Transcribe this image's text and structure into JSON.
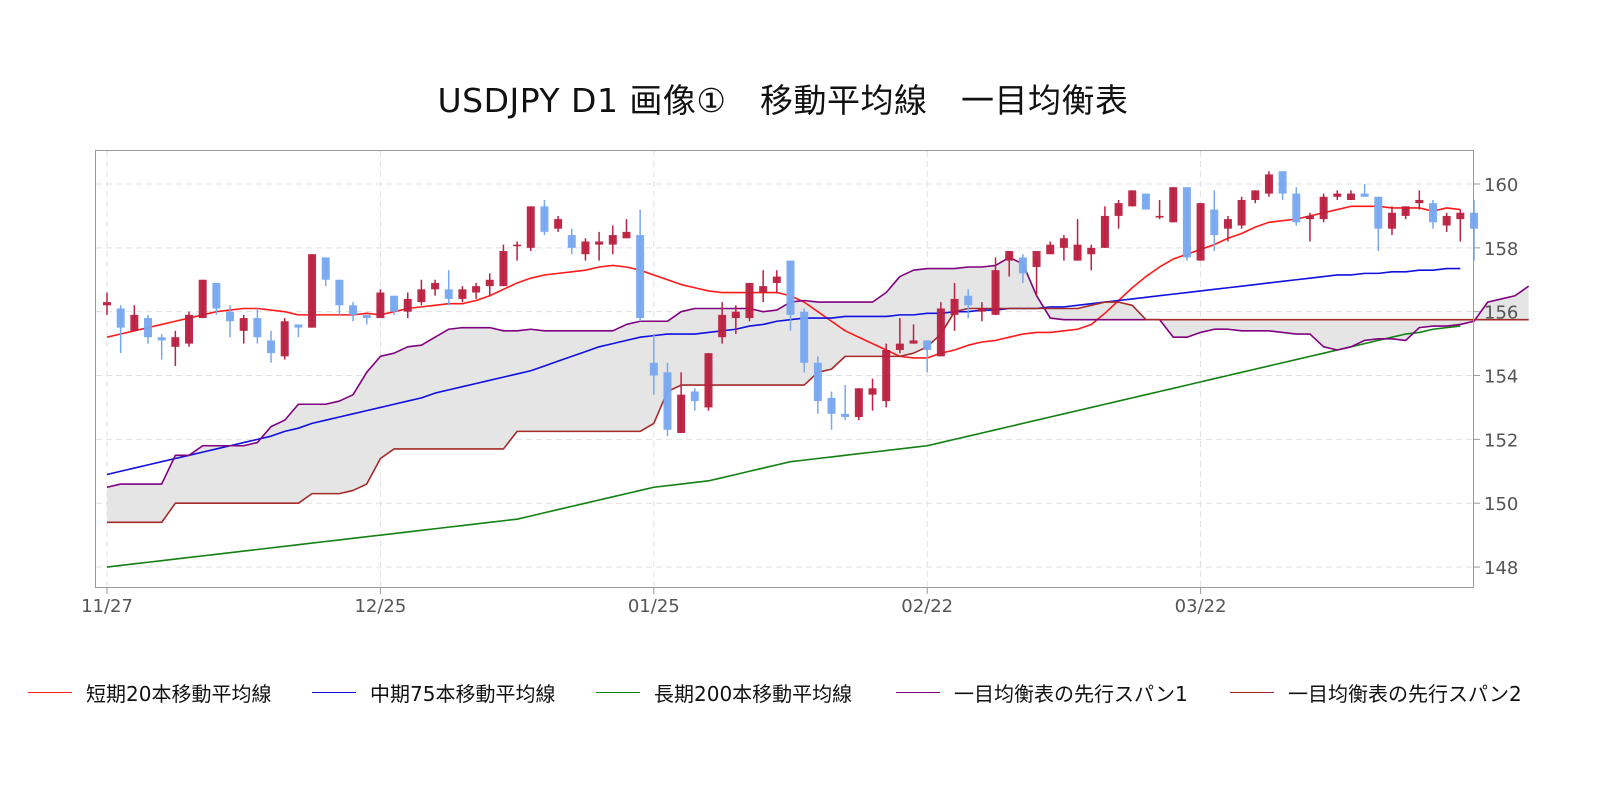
{
  "title": "USDJPY D1 画像①　移動平均線　一目均衡表",
  "colors": {
    "up_candle": "#bb2040",
    "down_candle": "#78a8f0",
    "sma20": "#ff1a1a",
    "sma75": "#1010e0",
    "sma200": "#128012",
    "span1": "#800080",
    "span2": "#a52a2a",
    "cloud_fill": "#e4e4e4",
    "grid": "#e0e0e0",
    "axis": "#999999",
    "tick_text": "#555555"
  },
  "legend": [
    {
      "label": "短期20本移動平均線",
      "color": "#ff1a1a"
    },
    {
      "label": "中期75本移動平均線",
      "color": "#1010e0"
    },
    {
      "label": "長期200本移動平均線",
      "color": "#128012"
    },
    {
      "label": "一目均衡表の先行スパン1",
      "color": "#800080"
    },
    {
      "label": "一目均衡表の先行スパン2",
      "color": "#a52a2a"
    }
  ],
  "chart_data": {
    "type": "candlestick",
    "title": "USDJPY D1 画像①　移動平均線　一目均衡表",
    "xlabel": "",
    "ylabel": "",
    "ylim": [
      147.4,
      161.1
    ],
    "grid": true,
    "legend_position": "bottom",
    "x_ticks": [
      {
        "label": "11/27",
        "index": 0
      },
      {
        "label": "12/25",
        "index": 20
      },
      {
        "label": "01/25",
        "index": 40
      },
      {
        "label": "02/22",
        "index": 60
      },
      {
        "label": "03/22",
        "index": 80
      }
    ],
    "y_ticks": [
      148,
      150,
      152,
      154,
      156,
      158,
      160
    ],
    "candles_ohlc": [
      [
        156.2,
        156.6,
        155.9,
        156.3
      ],
      [
        156.1,
        156.2,
        154.7,
        155.5
      ],
      [
        155.4,
        156.2,
        155.4,
        155.9
      ],
      [
        155.8,
        155.9,
        155.0,
        155.2
      ],
      [
        155.2,
        155.3,
        154.5,
        155.1
      ],
      [
        154.9,
        155.4,
        154.3,
        155.2
      ],
      [
        155.0,
        156.0,
        154.9,
        155.9
      ],
      [
        155.8,
        157.0,
        155.8,
        157.0
      ],
      [
        156.9,
        156.9,
        155.9,
        156.1
      ],
      [
        156.0,
        156.2,
        155.2,
        155.7
      ],
      [
        155.4,
        155.9,
        155.0,
        155.8
      ],
      [
        155.8,
        156.1,
        155.0,
        155.2
      ],
      [
        155.1,
        155.4,
        154.4,
        154.7
      ],
      [
        154.6,
        155.8,
        154.5,
        155.7
      ],
      [
        155.6,
        155.6,
        155.2,
        155.5
      ],
      [
        155.5,
        157.8,
        155.5,
        157.8
      ],
      [
        157.7,
        157.7,
        156.8,
        157.0
      ],
      [
        157.0,
        157.0,
        155.9,
        156.2
      ],
      [
        156.2,
        156.3,
        155.7,
        155.9
      ],
      [
        155.9,
        155.9,
        155.6,
        155.8
      ],
      [
        155.8,
        156.7,
        155.8,
        156.6
      ],
      [
        156.5,
        156.5,
        155.9,
        156.0
      ],
      [
        156.0,
        156.6,
        155.8,
        156.4
      ],
      [
        156.3,
        157.0,
        156.2,
        156.7
      ],
      [
        156.7,
        157.0,
        156.5,
        156.9
      ],
      [
        156.7,
        157.3,
        156.2,
        156.4
      ],
      [
        156.4,
        156.8,
        156.3,
        156.7
      ],
      [
        156.6,
        156.9,
        156.4,
        156.8
      ],
      [
        156.8,
        157.2,
        156.5,
        157.0
      ],
      [
        156.8,
        158.1,
        156.8,
        157.9
      ],
      [
        158.1,
        158.2,
        157.6,
        158.1
      ],
      [
        158.0,
        159.3,
        157.9,
        159.3
      ],
      [
        159.3,
        159.5,
        158.4,
        158.5
      ],
      [
        158.6,
        159.0,
        158.5,
        158.9
      ],
      [
        158.4,
        158.6,
        157.8,
        158.0
      ],
      [
        157.8,
        158.3,
        157.6,
        158.2
      ],
      [
        158.1,
        158.5,
        157.6,
        158.2
      ],
      [
        158.1,
        158.7,
        157.8,
        158.4
      ],
      [
        158.3,
        158.9,
        158.3,
        158.5
      ],
      [
        158.4,
        159.2,
        155.7,
        155.8
      ],
      [
        154.4,
        155.3,
        153.4,
        154.0
      ],
      [
        154.1,
        154.4,
        152.1,
        152.3
      ],
      [
        152.2,
        154.1,
        152.2,
        153.4
      ],
      [
        153.5,
        153.6,
        152.9,
        153.2
      ],
      [
        153.0,
        154.7,
        152.9,
        154.7
      ],
      [
        155.2,
        156.3,
        155.0,
        155.9
      ],
      [
        155.8,
        156.2,
        155.3,
        156.0
      ],
      [
        155.8,
        156.9,
        155.7,
        156.9
      ],
      [
        156.6,
        157.3,
        156.3,
        156.8
      ],
      [
        156.9,
        157.3,
        156.6,
        157.1
      ],
      [
        157.6,
        157.6,
        155.4,
        155.9
      ],
      [
        156.0,
        156.1,
        154.1,
        154.4
      ],
      [
        154.4,
        154.6,
        152.8,
        153.2
      ],
      [
        153.3,
        153.5,
        152.3,
        152.8
      ],
      [
        152.8,
        153.7,
        152.6,
        152.7
      ],
      [
        152.7,
        153.6,
        152.6,
        153.6
      ],
      [
        153.4,
        153.9,
        152.9,
        153.6
      ],
      [
        153.2,
        155.0,
        153.0,
        154.8
      ],
      [
        154.8,
        155.8,
        154.7,
        155.0
      ],
      [
        155.0,
        155.6,
        155.0,
        155.1
      ],
      [
        155.1,
        155.1,
        154.1,
        154.8
      ],
      [
        154.6,
        156.3,
        154.6,
        156.1
      ],
      [
        155.9,
        156.9,
        155.4,
        156.4
      ],
      [
        156.5,
        156.7,
        155.8,
        156.2
      ],
      [
        156.0,
        156.3,
        155.7,
        156.1
      ],
      [
        155.9,
        157.7,
        155.9,
        157.3
      ],
      [
        157.6,
        157.9,
        157.1,
        157.9
      ],
      [
        157.7,
        157.8,
        156.9,
        157.2
      ],
      [
        157.4,
        157.7,
        156.5,
        157.9
      ],
      [
        157.8,
        158.2,
        157.8,
        158.1
      ],
      [
        158.0,
        158.4,
        157.6,
        158.3
      ],
      [
        157.6,
        158.9,
        157.6,
        158.1
      ],
      [
        157.8,
        158.1,
        157.3,
        158.0
      ],
      [
        158.0,
        159.3,
        158.0,
        159.0
      ],
      [
        159.0,
        159.5,
        158.6,
        159.4
      ],
      [
        159.3,
        159.8,
        159.3,
        159.8
      ],
      [
        159.7,
        159.7,
        159.2,
        159.2
      ],
      [
        159.0,
        159.5,
        158.9,
        159.0
      ],
      [
        158.8,
        159.9,
        158.8,
        159.9
      ],
      [
        159.9,
        159.9,
        157.6,
        157.7
      ],
      [
        157.6,
        159.4,
        157.6,
        159.4
      ],
      [
        159.2,
        159.8,
        157.9,
        158.4
      ],
      [
        158.6,
        159.0,
        158.2,
        158.9
      ],
      [
        158.7,
        159.6,
        158.6,
        159.5
      ],
      [
        159.5,
        159.8,
        159.4,
        159.8
      ],
      [
        159.7,
        160.4,
        159.6,
        160.3
      ],
      [
        160.4,
        160.4,
        159.5,
        159.7
      ],
      [
        159.7,
        159.9,
        158.7,
        158.8
      ],
      [
        158.9,
        159.1,
        158.2,
        159.0
      ],
      [
        158.9,
        159.7,
        158.8,
        159.6
      ],
      [
        159.6,
        159.8,
        159.5,
        159.7
      ],
      [
        159.5,
        159.8,
        159.5,
        159.7
      ],
      [
        159.7,
        160.0,
        159.6,
        159.6
      ],
      [
        159.6,
        159.6,
        157.9,
        158.6
      ],
      [
        158.6,
        159.3,
        158.4,
        159.1
      ],
      [
        159.0,
        159.3,
        158.9,
        159.3
      ],
      [
        159.4,
        159.8,
        159.2,
        159.5
      ],
      [
        159.4,
        159.5,
        158.6,
        158.8
      ],
      [
        158.7,
        159.1,
        158.5,
        159.0
      ],
      [
        158.9,
        159.2,
        158.2,
        159.1
      ],
      [
        159.1,
        159.5,
        157.6,
        158.6
      ]
    ],
    "series": [
      {
        "name": "短期20本移動平均線",
        "color": "#ff1a1a",
        "values": [
          155.2,
          155.3,
          155.4,
          155.5,
          155.6,
          155.7,
          155.8,
          155.9,
          156.0,
          156.05,
          156.1,
          156.1,
          156.05,
          156.0,
          155.9,
          155.9,
          155.9,
          155.9,
          155.9,
          155.95,
          155.9,
          156.0,
          156.1,
          156.15,
          156.2,
          156.25,
          156.25,
          156.35,
          156.5,
          156.7,
          156.9,
          157.05,
          157.15,
          157.2,
          157.25,
          157.3,
          157.4,
          157.45,
          157.4,
          157.3,
          157.15,
          157.0,
          156.85,
          156.75,
          156.65,
          156.6,
          156.6,
          156.6,
          156.6,
          156.6,
          156.5,
          156.3,
          156.0,
          155.7,
          155.4,
          155.2,
          155.0,
          154.8,
          154.6,
          154.55,
          154.55,
          154.7,
          154.8,
          154.95,
          155.05,
          155.1,
          155.2,
          155.3,
          155.35,
          155.35,
          155.4,
          155.45,
          155.6,
          155.95,
          156.35,
          156.75,
          157.1,
          157.4,
          157.65,
          157.8,
          157.95,
          158.1,
          158.3,
          158.45,
          158.65,
          158.8,
          158.85,
          158.9,
          159.0,
          159.1,
          159.2,
          159.3,
          159.3,
          159.3,
          159.25,
          159.25,
          159.25,
          159.15,
          159.25,
          159.2
        ]
      },
      {
        "name": "中期75本移動平均線",
        "color": "#1010e0",
        "values": [
          150.9,
          151.0,
          151.1,
          151.2,
          151.3,
          151.4,
          151.5,
          151.6,
          151.7,
          151.8,
          151.9,
          152.0,
          152.1,
          152.25,
          152.35,
          152.5,
          152.6,
          152.7,
          152.8,
          152.9,
          153.0,
          153.1,
          153.2,
          153.3,
          153.45,
          153.55,
          153.65,
          153.75,
          153.85,
          153.95,
          154.05,
          154.15,
          154.3,
          154.45,
          154.6,
          154.75,
          154.9,
          155.0,
          155.1,
          155.2,
          155.25,
          155.3,
          155.3,
          155.3,
          155.35,
          155.4,
          155.45,
          155.55,
          155.6,
          155.7,
          155.75,
          155.8,
          155.8,
          155.8,
          155.85,
          155.85,
          155.85,
          155.85,
          155.9,
          155.9,
          155.95,
          155.95,
          156.0,
          156.0,
          156.05,
          156.05,
          156.1,
          156.1,
          156.1,
          156.15,
          156.15,
          156.2,
          156.25,
          156.3,
          156.35,
          156.4,
          156.45,
          156.5,
          156.55,
          156.6,
          156.65,
          156.7,
          156.75,
          156.8,
          156.85,
          156.9,
          156.95,
          157.0,
          157.05,
          157.1,
          157.15,
          157.15,
          157.2,
          157.2,
          157.25,
          157.25,
          157.3,
          157.3,
          157.35,
          157.35
        ]
      },
      {
        "name": "長期200本移動平均線",
        "color": "#128012",
        "values": [
          148.0,
          148.05,
          148.1,
          148.15,
          148.2,
          148.25,
          148.3,
          148.35,
          148.4,
          148.45,
          148.5,
          148.55,
          148.6,
          148.65,
          148.7,
          148.75,
          148.8,
          148.85,
          148.9,
          148.95,
          149.0,
          149.05,
          149.1,
          149.15,
          149.2,
          149.25,
          149.3,
          149.35,
          149.4,
          149.45,
          149.5,
          149.6,
          149.7,
          149.8,
          149.9,
          150.0,
          150.1,
          150.2,
          150.3,
          150.4,
          150.5,
          150.55,
          150.6,
          150.65,
          150.7,
          150.8,
          150.9,
          151.0,
          151.1,
          151.2,
          151.3,
          151.35,
          151.4,
          151.45,
          151.5,
          151.55,
          151.6,
          151.65,
          151.7,
          151.75,
          151.8,
          151.9,
          152.0,
          152.1,
          152.2,
          152.3,
          152.4,
          152.5,
          152.6,
          152.7,
          152.8,
          152.9,
          153.0,
          153.1,
          153.2,
          153.3,
          153.4,
          153.5,
          153.6,
          153.7,
          153.8,
          153.9,
          154.0,
          154.1,
          154.2,
          154.3,
          154.4,
          154.5,
          154.6,
          154.7,
          154.8,
          154.9,
          155.0,
          155.1,
          155.2,
          155.3,
          155.35,
          155.45,
          155.5,
          155.55
        ]
      },
      {
        "name": "一目均衡表の先行スパン1",
        "color": "#800080",
        "values": [
          150.5,
          150.6,
          150.6,
          150.6,
          150.6,
          151.5,
          151.5,
          151.8,
          151.8,
          151.8,
          151.8,
          151.9,
          152.4,
          152.6,
          153.1,
          153.1,
          153.1,
          153.2,
          153.4,
          154.1,
          154.6,
          154.7,
          154.9,
          154.95,
          155.2,
          155.45,
          155.5,
          155.5,
          155.5,
          155.4,
          155.4,
          155.45,
          155.4,
          155.4,
          155.4,
          155.4,
          155.4,
          155.4,
          155.6,
          155.7,
          155.7,
          155.7,
          156.0,
          156.1,
          156.1,
          156.1,
          156.1,
          156.1,
          156.0,
          156.05,
          156.3,
          156.35,
          156.3,
          156.3,
          156.3,
          156.3,
          156.3,
          156.6,
          157.1,
          157.3,
          157.35,
          157.35,
          157.35,
          157.4,
          157.4,
          157.45,
          157.7,
          157.5,
          156.5,
          155.8,
          155.75,
          155.75,
          155.75,
          155.75,
          155.75,
          155.75,
          155.75,
          155.75,
          155.2,
          155.2,
          155.35,
          155.45,
          155.45,
          155.4,
          155.4,
          155.4,
          155.35,
          155.3,
          155.3,
          154.9,
          154.8,
          154.9,
          155.1,
          155.15,
          155.15,
          155.1,
          155.5,
          155.55,
          155.55,
          155.6,
          155.7,
          156.3,
          156.4,
          156.5,
          156.8
        ]
      },
      {
        "name": "一目均衡表の先行スパン2",
        "color": "#a52a2a",
        "values": [
          149.4,
          149.4,
          149.4,
          149.4,
          149.4,
          150.0,
          150.0,
          150.0,
          150.0,
          150.0,
          150.0,
          150.0,
          150.0,
          150.0,
          150.0,
          150.3,
          150.3,
          150.3,
          150.4,
          150.6,
          151.4,
          151.7,
          151.7,
          151.7,
          151.7,
          151.7,
          151.7,
          151.7,
          151.7,
          151.7,
          152.25,
          152.25,
          152.25,
          152.25,
          152.25,
          152.25,
          152.25,
          152.25,
          152.25,
          152.25,
          152.5,
          153.5,
          153.7,
          153.7,
          153.7,
          153.7,
          153.7,
          153.7,
          153.7,
          153.7,
          153.7,
          153.7,
          154.1,
          154.2,
          154.6,
          154.6,
          154.6,
          154.6,
          154.6,
          154.7,
          154.9,
          155.3,
          156.0,
          156.1,
          156.1,
          156.1,
          156.1,
          156.1,
          156.1,
          156.1,
          156.1,
          156.1,
          156.2,
          156.3,
          156.3,
          156.2,
          155.75,
          155.75,
          155.75,
          155.75,
          155.75,
          155.75,
          155.75,
          155.75,
          155.75,
          155.75,
          155.75,
          155.75,
          155.75,
          155.75,
          155.75,
          155.75,
          155.75,
          155.75,
          155.75,
          155.75,
          155.75,
          155.75,
          155.75,
          155.75,
          155.75,
          155.75,
          155.75,
          155.75,
          155.75
        ]
      }
    ]
  }
}
